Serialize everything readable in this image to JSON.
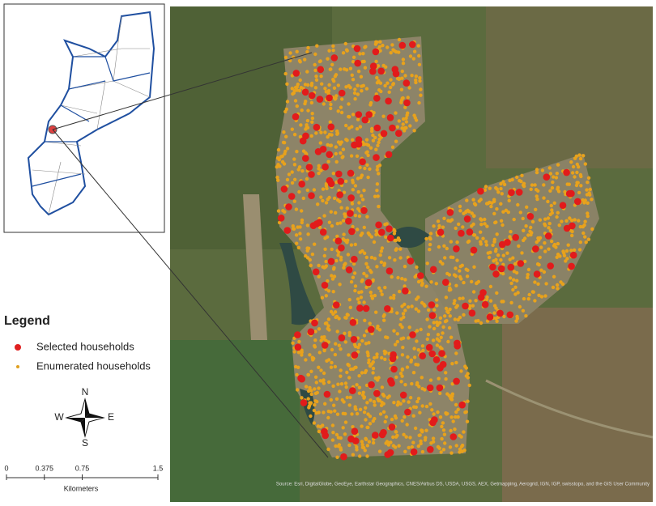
{
  "legend": {
    "title": "Legend",
    "items": [
      "Selected households",
      "Enumerated households"
    ]
  },
  "compass": {
    "n": "N",
    "s": "S",
    "e": "E",
    "w": "W"
  },
  "scale": {
    "ticks": [
      0,
      0.375,
      0.75,
      1.5
    ],
    "unit": "Kilometers"
  },
  "attribution": "Source: Esri, DigitalGlobe, GeoEye, Earthstar Geographics, CNES/Airbus DS, USDA, USGS, AEX, Getmapping, Aerogrid, IGN, IGP, swisstopo, and the GIS User Community"
}
